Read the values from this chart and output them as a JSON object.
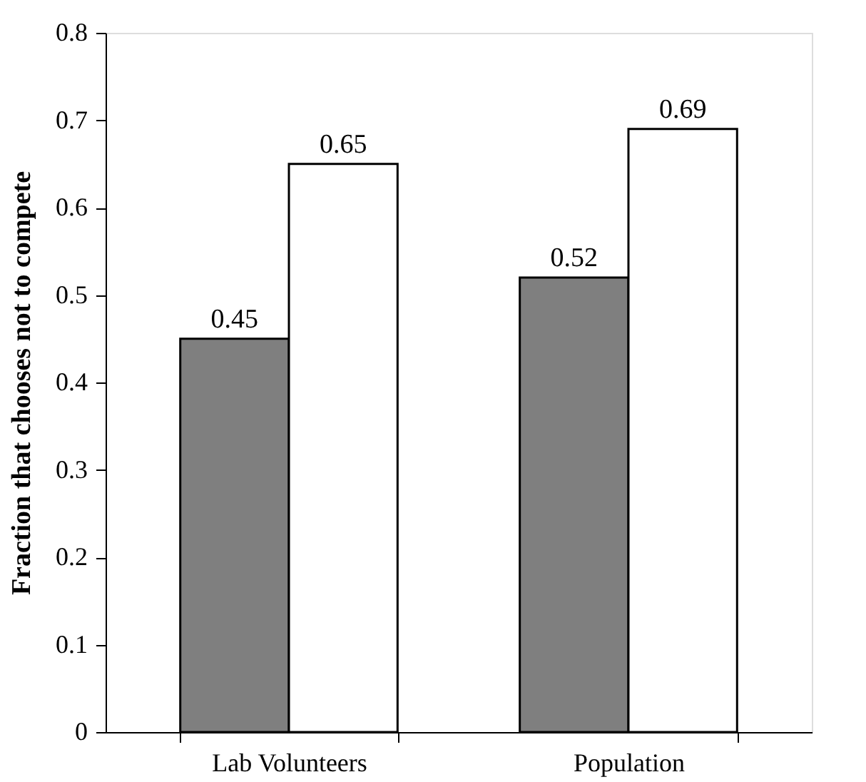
{
  "chart_data": {
    "type": "bar",
    "ylabel": "Fraction that chooses not to compete",
    "categories": [
      "Lab Volunteers",
      "Population"
    ],
    "series": [
      {
        "color": "#7f7f7f",
        "values": [
          0.45,
          0.52
        ]
      },
      {
        "color": "#ffffff",
        "values": [
          0.65,
          0.69
        ]
      }
    ],
    "ylim": [
      0,
      0.8
    ],
    "yticks": [
      0,
      0.1,
      0.2,
      0.3,
      0.4,
      0.5,
      0.6,
      0.7,
      0.8
    ],
    "data_labels": true,
    "grid": false,
    "legend": false
  }
}
